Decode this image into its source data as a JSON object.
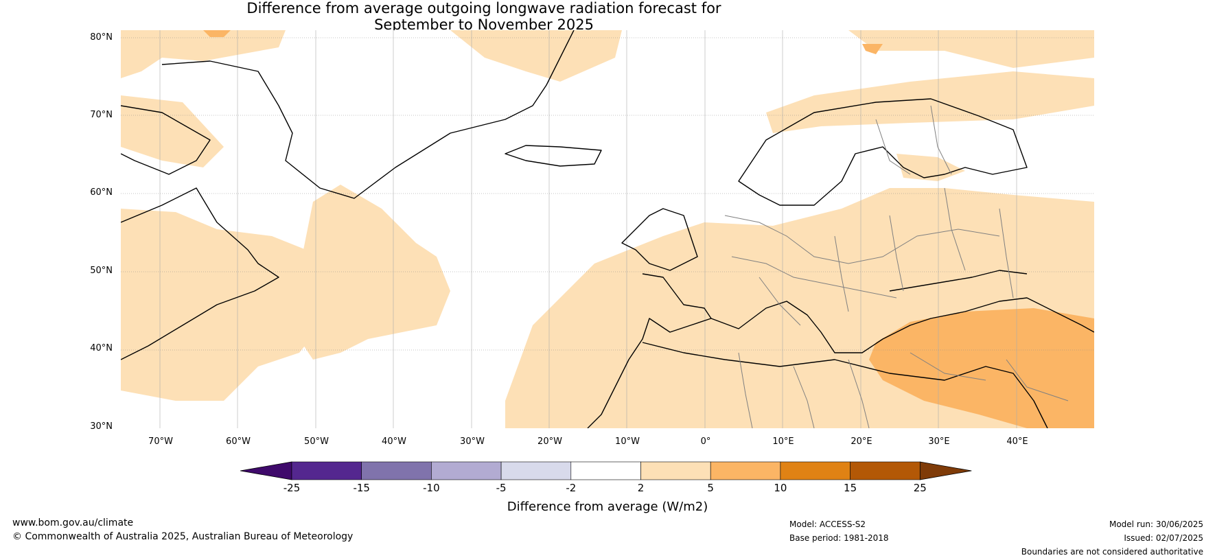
{
  "title": {
    "line1": "Difference from average outgoing longwave radiation forecast for",
    "line2": "September to November 2025"
  },
  "map": {
    "lat_labels": [
      "80°N",
      "70°N",
      "60°N",
      "50°N",
      "40°N",
      "30°N"
    ],
    "lon_labels": [
      "70°W",
      "60°W",
      "50°W",
      "40°W",
      "30°W",
      "20°W",
      "10°W",
      "0°",
      "10°E",
      "20°E",
      "30°E",
      "40°E"
    ],
    "extent": {
      "lon": [
        -75,
        50
      ],
      "lat": [
        30,
        81
      ]
    },
    "colors": {
      "light_orange": "#fde0b6",
      "orange": "#fbb565",
      "coast": "#000000",
      "border": "#808080"
    }
  },
  "colorbar": {
    "ticks": [
      "-25",
      "-15",
      "-10",
      "-5",
      "-2",
      "2",
      "5",
      "10",
      "15",
      "25"
    ],
    "colors": [
      "#3f0a6b",
      "#54278f",
      "#8073ac",
      "#b2abd2",
      "#d8daeb",
      "#ffffff",
      "#fde0b6",
      "#fbb565",
      "#e08214",
      "#b35806",
      "#7f3b08"
    ],
    "label": "Difference from average (W/m2)"
  },
  "footer": {
    "website": "www.bom.gov.au/climate",
    "copyright": "© Commonwealth of Australia 2025, Australian Bureau of Meteorology",
    "model": "Model: ACCESS-S2",
    "base_period": "Base period: 1981-2018",
    "model_run": "Model run: 30/06/2025",
    "issued": "Issued: 02/07/2025",
    "disclaimer": "Boundaries are not considered authoritative"
  }
}
